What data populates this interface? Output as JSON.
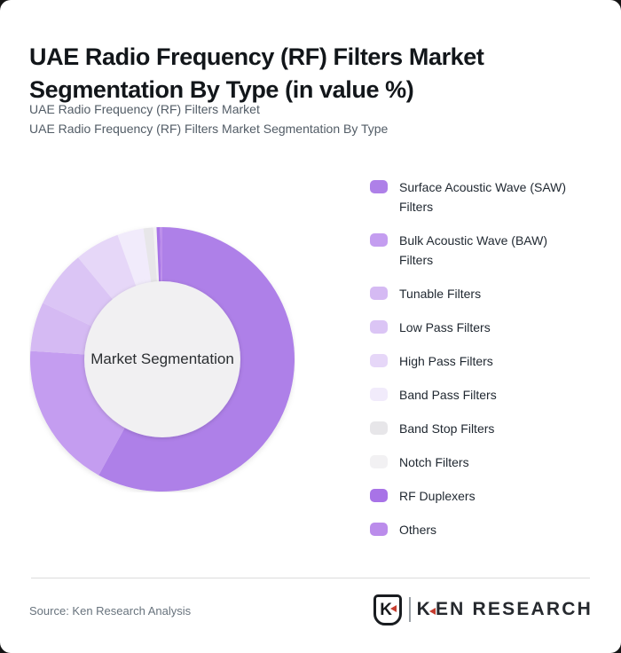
{
  "header": {
    "title": "UAE Radio Frequency (RF) Filters Market Segmentation By Type (in value %)",
    "subtitle_line1": "UAE Radio Frequency (RF) Filters Market",
    "subtitle_line2": "UAE Radio Frequency (RF) Filters Market Segmentation By Type"
  },
  "chart_data": {
    "type": "pie",
    "variant": "donut",
    "center_label": "Market Segmentation",
    "start_angle_deg": 0,
    "direction": "clockwise",
    "legend_position": "right",
    "value_labels_shown": false,
    "inner_circle_color": "#f1f0f2",
    "series": [
      {
        "name": "Surface Acoustic Wave (SAW) Filters",
        "value": 58.0,
        "color": "#ae80e8"
      },
      {
        "name": "Bulk Acoustic Wave (BAW) Filters",
        "value": 18.0,
        "color": "#c49df0"
      },
      {
        "name": "Tunable Filters",
        "value": 6.0,
        "color": "#d5baf3"
      },
      {
        "name": "Low Pass Filters",
        "value": 7.0,
        "color": "#dbc5f5"
      },
      {
        "name": "High Pass Filters",
        "value": 5.5,
        "color": "#e6d7f8"
      },
      {
        "name": "Band Pass Filters",
        "value": 3.2,
        "color": "#f1ebfb"
      },
      {
        "name": "Band Stop Filters",
        "value": 1.2,
        "color": "#e7e6e9"
      },
      {
        "name": "Notch Filters",
        "value": 0.4,
        "color": "#f2f1f3"
      },
      {
        "name": "RF Duplexers",
        "value": 0.4,
        "color": "#a873e7"
      },
      {
        "name": "Others",
        "value": 0.3,
        "color": "#bb8ceb"
      }
    ]
  },
  "footer": {
    "source": "Source: Ken Research Analysis",
    "logo": {
      "badge_letter": "K",
      "brand_first_letter": "K",
      "brand_remainder": "EN RESEARCH",
      "accent_color": "#c63d2f"
    }
  }
}
